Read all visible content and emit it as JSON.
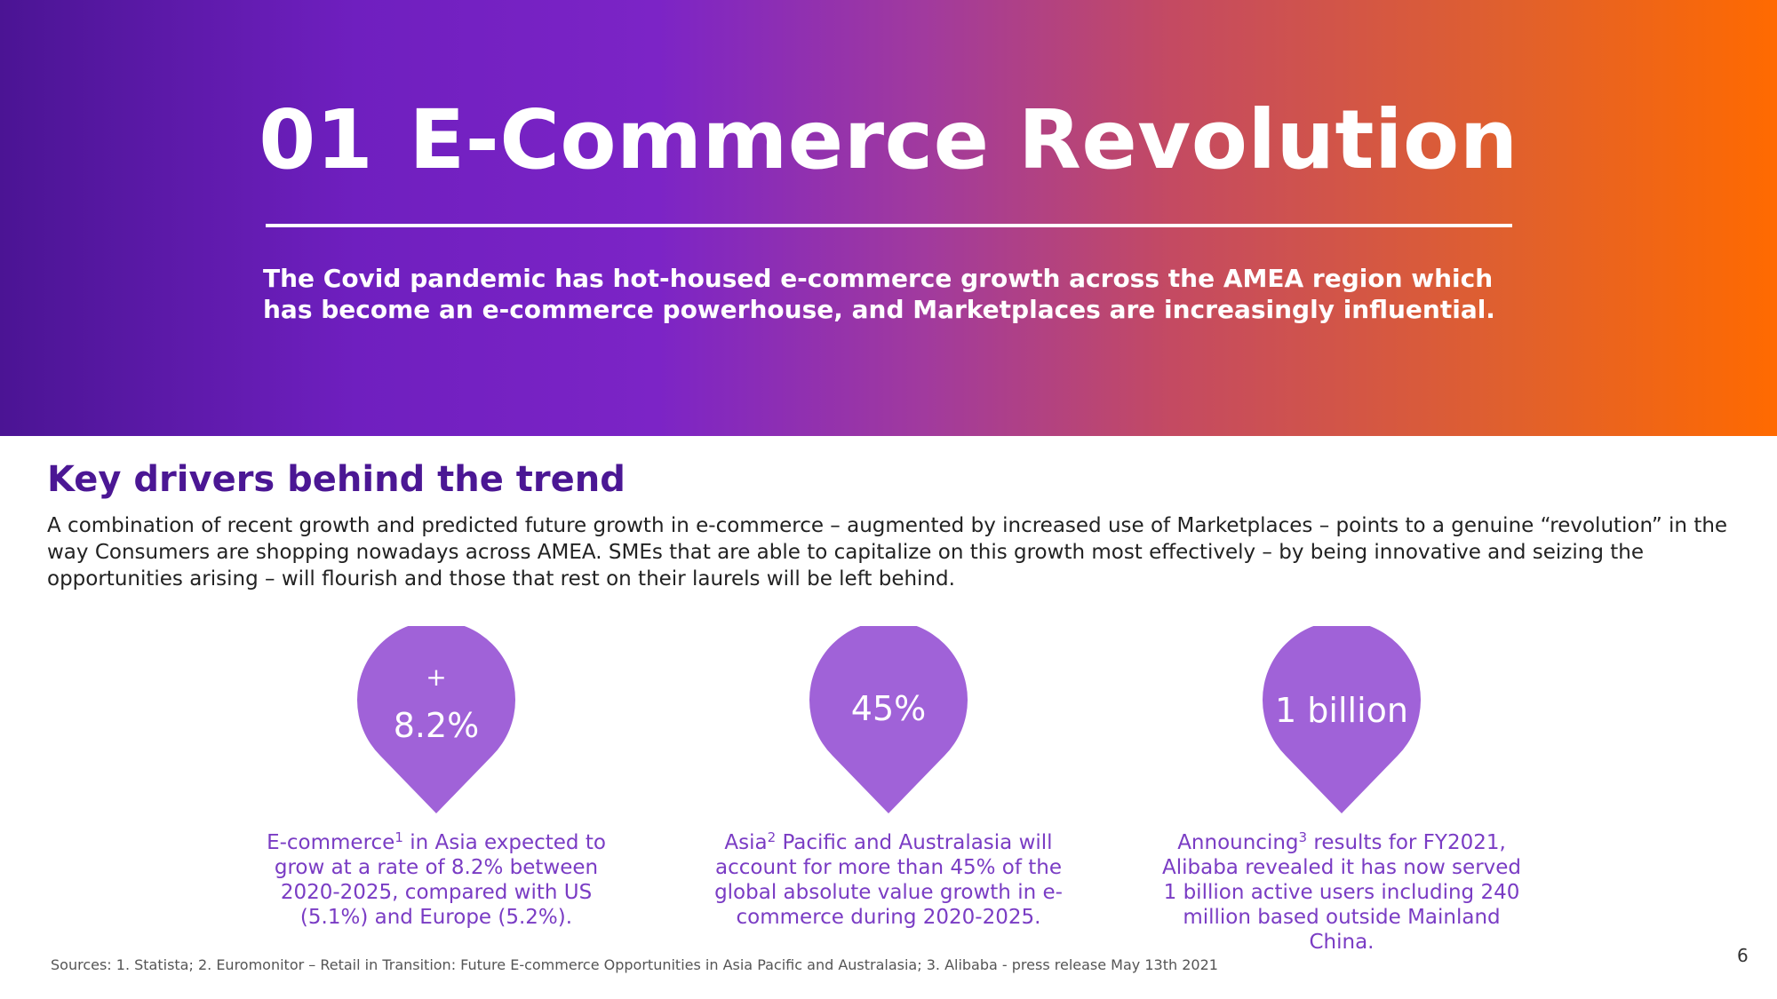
{
  "header": {
    "number": "01",
    "title": "E-Commerce Revolution",
    "subtitle": "The Covid pandemic has hot-housed e-commerce growth across the AMEA region which has become an e-commerce powerhouse, and Marketplaces are increasingly influential."
  },
  "section": {
    "title": "Key drivers behind the trend",
    "body": "A combination of recent growth and predicted future growth in e-commerce – augmented by increased use of Marketplaces – points to a genuine “revolution” in the way Consumers are shopping nowadays across AMEA. SMEs that are able to capitalize on this growth most effectively – by being innovative and seizing the opportunities arising – will flourish and those that rest on their laurels will be left behind."
  },
  "stats": [
    {
      "value_prefix": "+",
      "value": "8.2%",
      "caption_lead": "E-commerce",
      "caption_sup": "1",
      "caption_rest": " in Asia expected to grow at a rate of 8.2% between 2020-2025, compared with US (5.1%) and Europe (5.2%)."
    },
    {
      "value": "45%",
      "caption_lead": "Asia",
      "caption_sup": "2",
      "caption_rest": " Pacific and Australasia will account for more than 45% of the global absolute value growth in e-commerce during 2020-2025."
    },
    {
      "value": "1 billion",
      "caption_lead": "Announcing",
      "caption_sup": "3",
      "caption_rest": " results for FY2021, Alibaba revealed it has now served 1 billion active users including 240 million based outside Mainland China."
    }
  ],
  "footer": {
    "sources": "Sources: 1. Statista; 2. Euromonitor – Retail in Transition: Future E-commerce Opportunities in Asia Pacific and Australasia; 3. Alibaba - press release May 13th 2021",
    "page_number": "6"
  },
  "colors": {
    "accent_purple": "#4b1794",
    "drop_fill": "#a062d8",
    "caption_text": "#7a3cc4",
    "gradient_start": "#4b1494",
    "gradient_end": "#ff6a00"
  }
}
